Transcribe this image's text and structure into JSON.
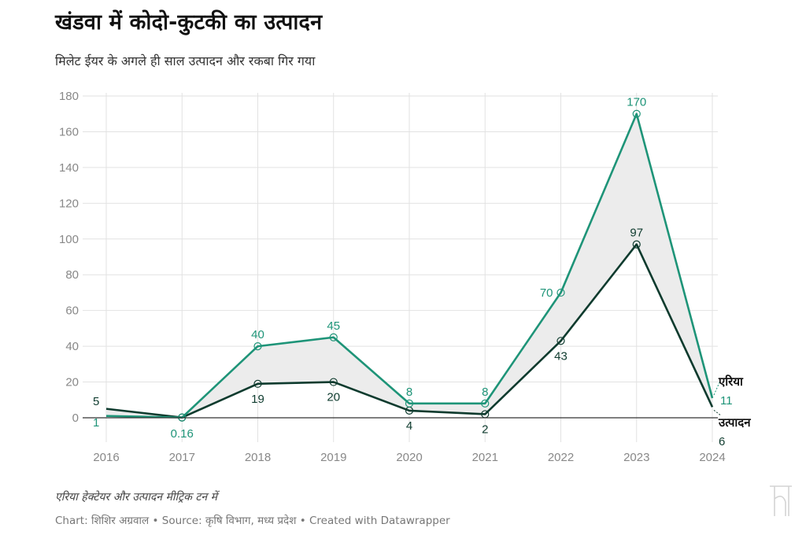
{
  "title": "खंडवा में कोदो-कुटकी का उत्पादन",
  "subtitle": "मिलेट ईयर के अगले ही साल उत्पादन और रकबा गिर गया",
  "notes": "एरिया हेक्टेयर और उत्पादन मीट्रिक टन में",
  "byline": {
    "chart_prefix": "Chart: ",
    "author": "शिशिर अग्रवाल",
    "separator1": " • ",
    "source_prefix": "Source: ",
    "source": "कृषि विभाग, मध्य प्रदेश",
    "separator2": " • ",
    "created_with": "Created with Datawrapper"
  },
  "colors": {
    "area": "#1e9478",
    "production": "#0e3b2e",
    "fill": "#ececec",
    "grid": "#e2e2e2",
    "tick": "#888888"
  },
  "chart_data": {
    "type": "line",
    "x": [
      "2016",
      "2017",
      "2018",
      "2019",
      "2020",
      "2021",
      "2022",
      "2023",
      "2024"
    ],
    "series": [
      {
        "name": "एरिया",
        "values": [
          1,
          0.16,
          40,
          45,
          8,
          8,
          70,
          170,
          11
        ]
      },
      {
        "name": "उत्पादन",
        "values": [
          5,
          0.16,
          19,
          20,
          4,
          2,
          43,
          97,
          6
        ]
      }
    ],
    "data_labels": {
      "area": [
        "1",
        "0.16",
        "40",
        "45",
        "8",
        "8",
        "70",
        "170",
        "11"
      ],
      "production": [
        "5",
        "",
        "19",
        "20",
        "4",
        "2",
        "43",
        "97",
        "6"
      ]
    },
    "yticks": [
      "0",
      "20",
      "40",
      "60",
      "80",
      "100",
      "120",
      "140",
      "160",
      "180"
    ],
    "ylim": [
      0,
      180
    ],
    "fill_between": true,
    "grid": true,
    "legend": "inline-right"
  }
}
